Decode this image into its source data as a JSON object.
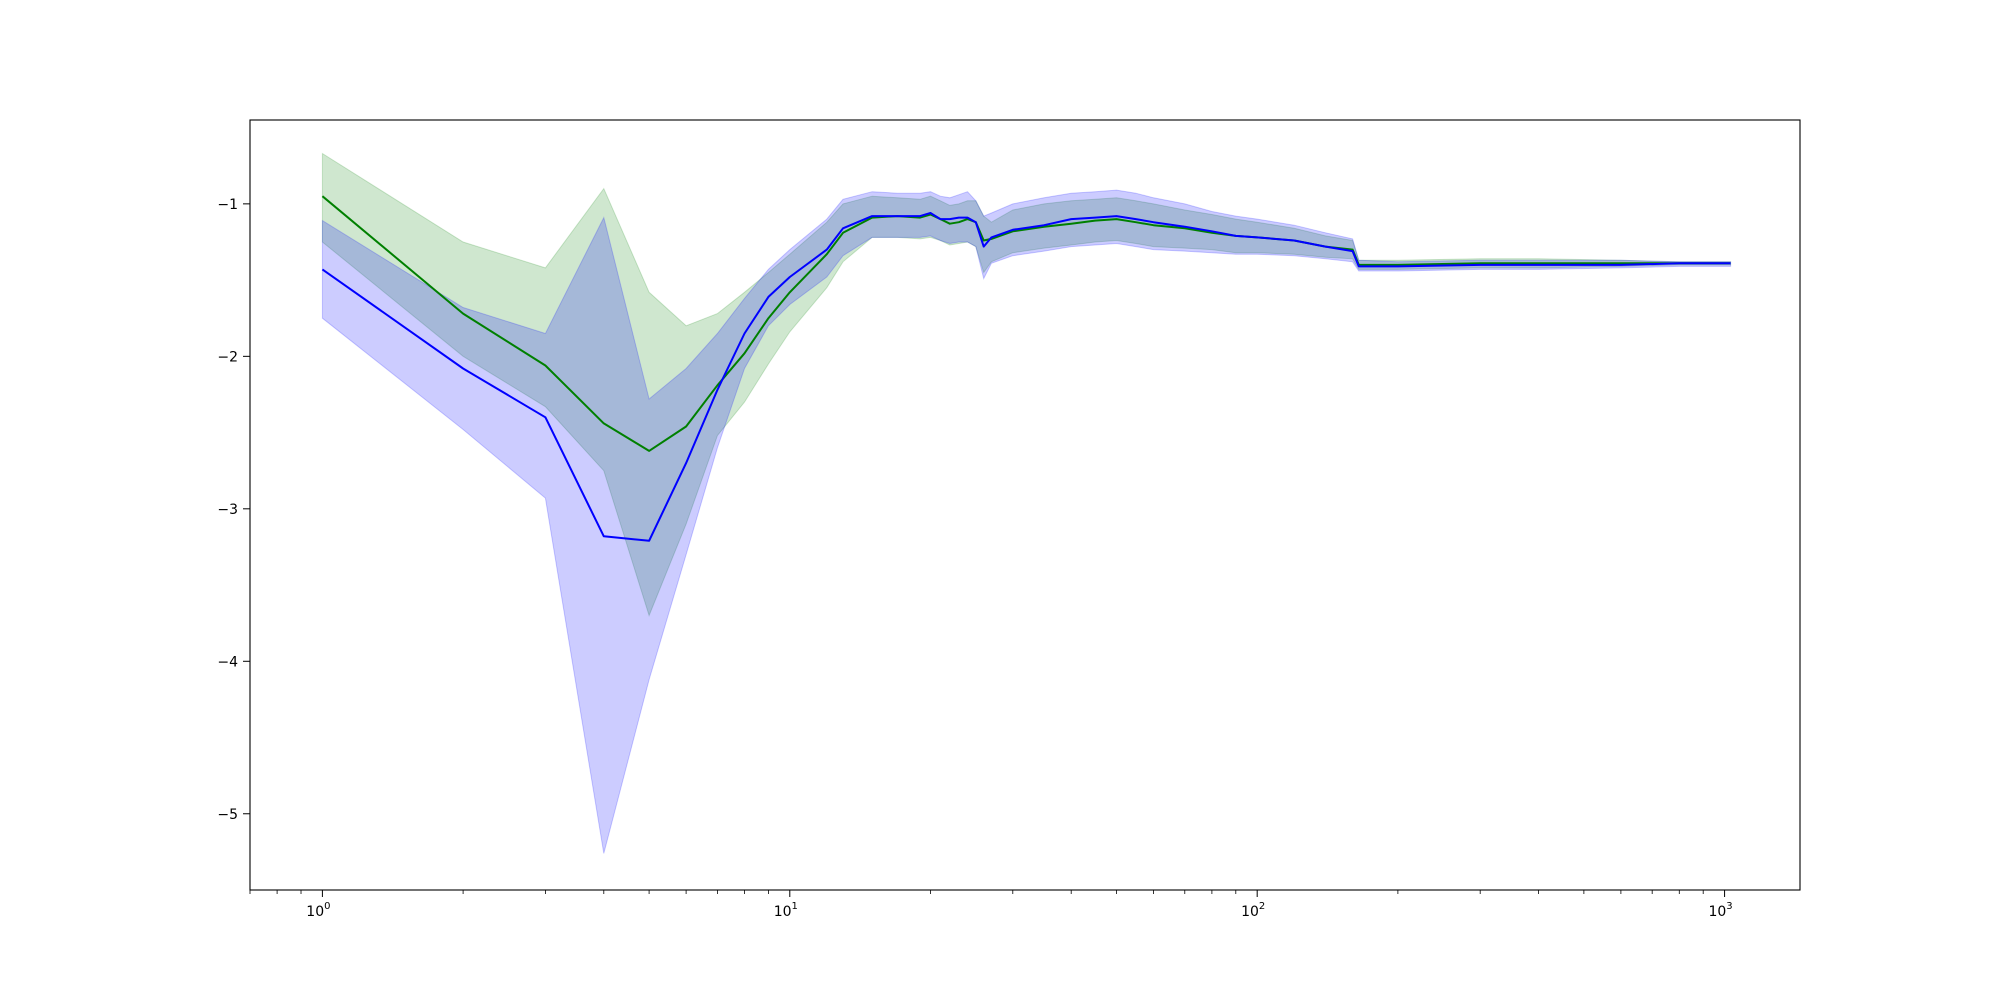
{
  "chart_data": {
    "type": "line",
    "title": "",
    "xlabel": "",
    "ylabel": "",
    "xscale": "log",
    "xlim": [
      0.7,
      1450
    ],
    "ylim": [
      -5.5,
      -0.45
    ],
    "grid": false,
    "x_ticks": [
      1,
      10,
      100,
      1000
    ],
    "x_tick_labels": [
      {
        "base": "10",
        "exp": "0"
      },
      {
        "base": "10",
        "exp": "1"
      },
      {
        "base": "10",
        "exp": "2"
      },
      {
        "base": "10",
        "exp": "3"
      }
    ],
    "y_ticks": [
      -1,
      -2,
      -3,
      -4,
      -5
    ],
    "y_tick_labels": [
      "−1",
      "−2",
      "−3",
      "−4",
      "−5"
    ],
    "series": [
      {
        "color": "#008000",
        "band_color": "#008000",
        "band_opacity": 0.19,
        "x": [
          1,
          2,
          3,
          4,
          5,
          6,
          7,
          8,
          9,
          10,
          12,
          13,
          15,
          17,
          19,
          20,
          21,
          22,
          23,
          24,
          25,
          26,
          27,
          30,
          35,
          40,
          45,
          50,
          55,
          60,
          70,
          80,
          90,
          100,
          120,
          140,
          160,
          165,
          200,
          300,
          400,
          600,
          800,
          1000,
          1030
        ],
        "y": [
          -0.95,
          -1.72,
          -2.06,
          -2.44,
          -2.62,
          -2.46,
          -2.19,
          -1.98,
          -1.75,
          -1.58,
          -1.33,
          -1.19,
          -1.09,
          -1.08,
          -1.09,
          -1.07,
          -1.1,
          -1.13,
          -1.12,
          -1.1,
          -1.12,
          -1.24,
          -1.23,
          -1.18,
          -1.15,
          -1.13,
          -1.11,
          -1.1,
          -1.12,
          -1.14,
          -1.16,
          -1.19,
          -1.21,
          -1.22,
          -1.24,
          -1.28,
          -1.3,
          -1.4,
          -1.4,
          -1.39,
          -1.39,
          -1.39,
          -1.39,
          -1.39,
          -1.39
        ],
        "upper": [
          -0.67,
          -1.25,
          -1.42,
          -0.9,
          -1.58,
          -1.8,
          -1.72,
          -1.58,
          -1.45,
          -1.33,
          -1.12,
          -1.0,
          -0.95,
          -0.96,
          -0.97,
          -0.95,
          -0.98,
          -1.01,
          -1.0,
          -0.98,
          -0.98,
          -1.08,
          -1.12,
          -1.04,
          -1.0,
          -0.98,
          -0.97,
          -0.96,
          -0.98,
          -1.0,
          -1.04,
          -1.07,
          -1.1,
          -1.12,
          -1.16,
          -1.21,
          -1.24,
          -1.37,
          -1.37,
          -1.36,
          -1.36,
          -1.37,
          -1.38,
          -1.38,
          -1.38
        ],
        "lower": [
          -1.25,
          -2.0,
          -2.33,
          -2.75,
          -3.7,
          -3.1,
          -2.52,
          -2.3,
          -2.05,
          -1.84,
          -1.55,
          -1.38,
          -1.22,
          -1.22,
          -1.23,
          -1.22,
          -1.24,
          -1.27,
          -1.26,
          -1.25,
          -1.28,
          -1.45,
          -1.38,
          -1.32,
          -1.29,
          -1.27,
          -1.25,
          -1.24,
          -1.26,
          -1.28,
          -1.29,
          -1.3,
          -1.32,
          -1.32,
          -1.33,
          -1.35,
          -1.36,
          -1.43,
          -1.43,
          -1.42,
          -1.42,
          -1.41,
          -1.4,
          -1.4,
          -1.4
        ]
      },
      {
        "color": "#0000ff",
        "band_color": "#0000ff",
        "band_opacity": 0.2,
        "x": [
          1,
          2,
          3,
          4,
          5,
          6,
          7,
          8,
          9,
          10,
          12,
          13,
          15,
          17,
          19,
          20,
          21,
          22,
          23,
          24,
          25,
          26,
          27,
          30,
          35,
          40,
          45,
          50,
          55,
          60,
          70,
          80,
          90,
          100,
          120,
          140,
          160,
          165,
          200,
          300,
          400,
          600,
          800,
          1000,
          1030
        ],
        "y": [
          -1.43,
          -2.08,
          -2.4,
          -3.18,
          -3.21,
          -2.7,
          -2.22,
          -1.85,
          -1.61,
          -1.48,
          -1.3,
          -1.16,
          -1.08,
          -1.08,
          -1.08,
          -1.06,
          -1.1,
          -1.1,
          -1.09,
          -1.09,
          -1.12,
          -1.28,
          -1.22,
          -1.17,
          -1.14,
          -1.1,
          -1.09,
          -1.08,
          -1.1,
          -1.12,
          -1.15,
          -1.18,
          -1.21,
          -1.22,
          -1.24,
          -1.28,
          -1.31,
          -1.41,
          -1.41,
          -1.4,
          -1.4,
          -1.4,
          -1.39,
          -1.39,
          -1.39
        ],
        "upper": [
          -1.11,
          -1.68,
          -1.85,
          -1.09,
          -2.28,
          -2.08,
          -1.85,
          -1.62,
          -1.43,
          -1.3,
          -1.1,
          -0.97,
          -0.92,
          -0.93,
          -0.93,
          -0.92,
          -0.95,
          -0.96,
          -0.94,
          -0.92,
          -0.98,
          -1.08,
          -1.06,
          -1.0,
          -0.96,
          -0.93,
          -0.92,
          -0.91,
          -0.93,
          -0.96,
          -1.0,
          -1.05,
          -1.08,
          -1.1,
          -1.14,
          -1.19,
          -1.23,
          -1.37,
          -1.38,
          -1.37,
          -1.37,
          -1.37,
          -1.38,
          -1.38,
          -1.38
        ],
        "lower": [
          -1.75,
          -2.48,
          -2.93,
          -5.26,
          -4.12,
          -3.3,
          -2.6,
          -2.08,
          -1.8,
          -1.66,
          -1.48,
          -1.34,
          -1.22,
          -1.22,
          -1.22,
          -1.21,
          -1.24,
          -1.26,
          -1.25,
          -1.25,
          -1.28,
          -1.49,
          -1.39,
          -1.34,
          -1.31,
          -1.28,
          -1.27,
          -1.26,
          -1.28,
          -1.3,
          -1.31,
          -1.32,
          -1.33,
          -1.33,
          -1.34,
          -1.36,
          -1.38,
          -1.44,
          -1.44,
          -1.43,
          -1.43,
          -1.42,
          -1.41,
          -1.41,
          -1.41
        ]
      }
    ]
  }
}
